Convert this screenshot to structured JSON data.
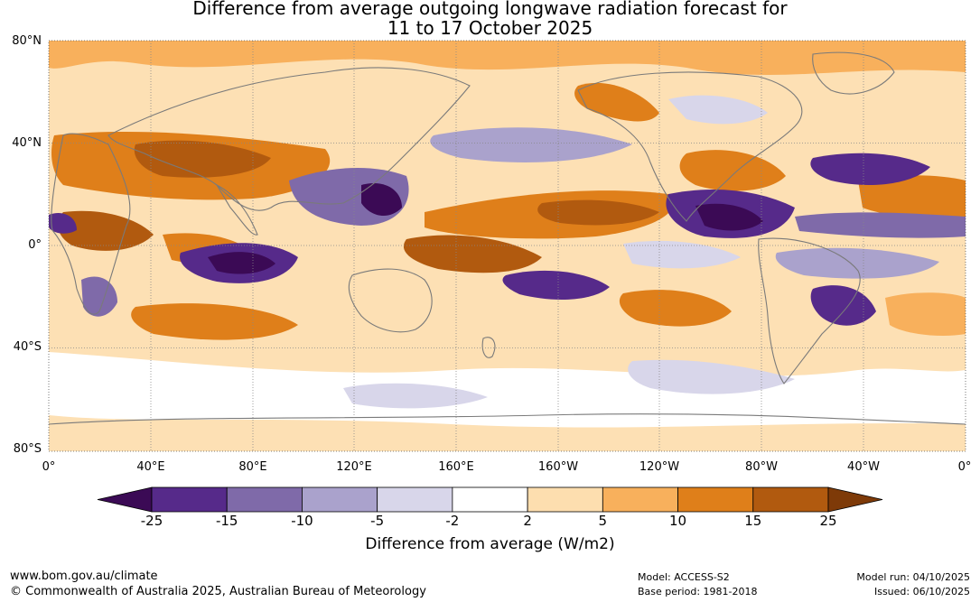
{
  "title_line1": "Difference from average outgoing longwave radiation forecast for",
  "title_line2": "11 to 17 October 2025",
  "map": {
    "lat_labels": [
      "80°N",
      "40°N",
      "0°",
      "40°S",
      "80°S"
    ],
    "lon_labels": [
      "0°",
      "40°E",
      "80°E",
      "120°E",
      "160°E",
      "160°W",
      "120°W",
      "80°W",
      "40°W",
      "0°"
    ]
  },
  "colorbar": {
    "title": "Difference from average (W/m2)",
    "ticks": [
      "-25",
      "-15",
      "-10",
      "-5",
      "-2",
      "2",
      "5",
      "10",
      "15",
      "25"
    ],
    "colors": [
      "#3b0a55",
      "#562a8a",
      "#7f6aa9",
      "#aaa2cc",
      "#d8d6ea",
      "#ffffff",
      "#fddeaf",
      "#f8b05c",
      "#df7f1a",
      "#b15a0f",
      "#7e3a08"
    ]
  },
  "footer": {
    "url": "www.bom.gov.au/climate",
    "copyright": "© Commonwealth of Australia 2025, Australian Bureau of Meteorology",
    "model": "Model: ACCESS-S2",
    "base_period": "Base period: 1981-2018",
    "model_run": "Model run: 04/10/2025",
    "issued": "Issued: 06/10/2025"
  }
}
